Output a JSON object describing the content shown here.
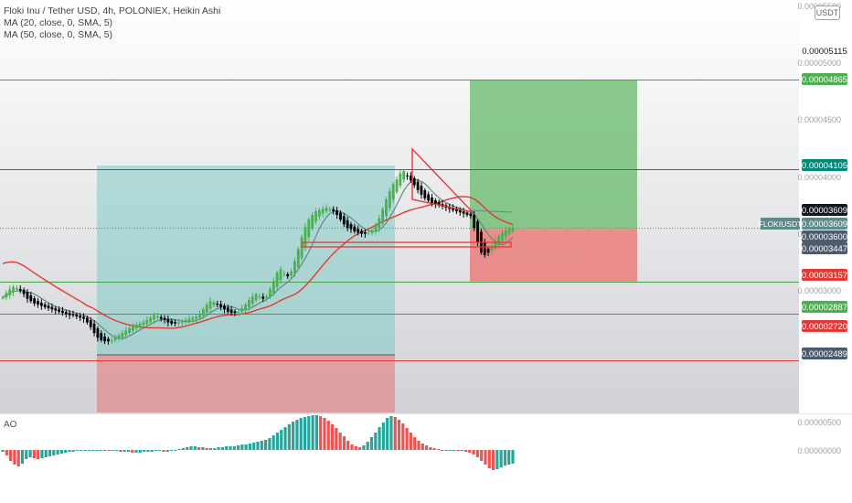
{
  "legend": {
    "title": "Floki Inu / Tether USD, 4h, POLONIEX, Heikin Ashi",
    "ma20": "MA (20, close, 0, SMA, 5)",
    "ma50": "MA (50, close, 0, SMA, 5)"
  },
  "currency": "USDT",
  "symbol_badge": "FLOKIUSDT",
  "colors": {
    "bull": "#26a69a",
    "bull_ha": "#4caf50",
    "bear": "#000000",
    "ma20": "#5f8a8b",
    "ma50": "#e53935",
    "long_target": "#66bb6a",
    "long_stop": "#ef5350",
    "ao_up": "#26a69a",
    "ao_down": "#ef5350",
    "triangle": "#e53935",
    "hline_green": "#43a047",
    "hline_teal": "#00897b",
    "hline_red": "#e53935"
  },
  "price_axis_ticks": [
    "0.00005500",
    "0.00005000",
    "0.00004500",
    "0.00004000",
    "0.00003500",
    "0.00003000"
  ],
  "price_labels": [
    {
      "value": "0.00005115",
      "style": "white"
    },
    {
      "value": "0.00004865",
      "style": "green"
    },
    {
      "value": "0.00004105",
      "style": "teal"
    },
    {
      "value": "0.00003609",
      "style": "black"
    },
    {
      "value": "0.00003609",
      "style": "gray"
    },
    {
      "value": "0.00003600",
      "style": "slate"
    },
    {
      "value": "0.00003447",
      "style": "slate"
    },
    {
      "value": "0.00003157",
      "style": "red"
    },
    {
      "value": "0.00002887",
      "style": "green"
    },
    {
      "value": "0.00002720",
      "style": "red"
    },
    {
      "value": "0.00002489",
      "style": "slate"
    }
  ],
  "ao_axis_ticks": [
    "0.00000500",
    "0.00000000"
  ],
  "ao_title": "AO",
  "chart_data": {
    "type": "candlestick",
    "title": "Floki Inu / Tether USD, 4h, POLONIEX, Heikin Ashi",
    "y_axis_ticks": [
      5.5e-05,
      5e-05,
      4.5e-05,
      4e-05,
      3.5e-05,
      3e-05
    ],
    "close_series_approx": [
      3.02e-05,
      3.06e-05,
      3.09e-05,
      3.11e-05,
      3.1e-05,
      3.08e-05,
      3.05e-05,
      3.01e-05,
      2.99e-05,
      2.97e-05,
      2.96e-05,
      2.95e-05,
      2.94e-05,
      2.93e-05,
      2.92e-05,
      2.91e-05,
      2.9e-05,
      2.89e-05,
      2.88e-05,
      2.87e-05,
      2.87e-05,
      2.86e-05,
      2.85e-05,
      2.84e-05,
      2.81e-05,
      2.77e-05,
      2.72e-05,
      2.68e-05,
      2.66e-05,
      2.65e-05,
      2.65e-05,
      2.66e-05,
      2.68e-05,
      2.7e-05,
      2.72e-05,
      2.74e-05,
      2.76e-05,
      2.78e-05,
      2.79e-05,
      2.8e-05,
      2.81e-05,
      2.83e-05,
      2.85e-05,
      2.87e-05,
      2.86e-05,
      2.84e-05,
      2.83e-05,
      2.81e-05,
      2.8e-05,
      2.8e-05,
      2.81e-05,
      2.82e-05,
      2.83e-05,
      2.84e-05,
      2.85e-05,
      2.86e-05,
      2.88e-05,
      2.92e-05,
      2.96e-05,
      2.99e-05,
      2.98e-05,
      2.96e-05,
      2.94e-05,
      2.92e-05,
      2.9e-05,
      2.89e-05,
      2.89e-05,
      2.9e-05,
      2.93e-05,
      2.96e-05,
      3e-05,
      3.03e-05,
      3.05e-05,
      3.03e-05,
      3.01e-05,
      3.03e-05,
      3.09e-05,
      3.16e-05,
      3.23e-05,
      3.26e-05,
      3.22e-05,
      3.2e-05,
      3.24e-05,
      3.33e-05,
      3.43e-05,
      3.53e-05,
      3.62e-05,
      3.68e-05,
      3.72e-05,
      3.75e-05,
      3.76e-05,
      3.77e-05,
      3.78e-05,
      3.77e-05,
      3.75e-05,
      3.72e-05,
      3.68e-05,
      3.64e-05,
      3.61e-05,
      3.6e-05,
      3.58e-05,
      3.57e-05,
      3.56e-05,
      3.56e-05,
      3.57e-05,
      3.59e-05,
      3.63e-05,
      3.69e-05,
      3.77e-05,
      3.85e-05,
      3.92e-05,
      3.98e-05,
      4.02e-05,
      4.07e-05,
      4.09e-05,
      4.05e-05,
      4.01e-05,
      3.97e-05,
      3.93e-05,
      3.89e-05,
      3.86e-05,
      3.84e-05,
      3.82e-05,
      3.81e-05,
      3.8e-05,
      3.79e-05,
      3.78e-05,
      3.77e-05,
      3.76e-05,
      3.75e-05,
      3.74e-05,
      3.73e-05,
      3.72e-05,
      3.71e-05,
      3.61e-05,
      3.49e-05,
      3.4e-05,
      3.38e-05,
      3.4e-05,
      3.45e-05,
      3.5e-05,
      3.54e-05,
      3.57e-05,
      3.59e-05,
      3.6e-05,
      3.61e-05
    ],
    "horizontal_levels": [
      {
        "price": 4.865e-05,
        "color": "green"
      },
      {
        "price": 4.105e-05,
        "color": "teal"
      },
      {
        "price": 3.157e-05,
        "color": "green"
      },
      {
        "price": 2.887e-05,
        "color": "green"
      },
      {
        "price": 2.489e-05,
        "color": "red"
      }
    ],
    "current_price": 3.609e-05,
    "long_position": {
      "entry": 3.6e-05,
      "target": 4.865e-05,
      "stop": 3.157e-05
    },
    "first_position": {
      "entry": 2.49e-05,
      "target": 4.11e-05,
      "stop": 2.05e-05
    },
    "indicators": [
      "MA (20, close, 0, SMA, 5)",
      "MA (50, close, 0, SMA, 5)",
      "AO"
    ],
    "ao_values_approx": [
      -2,
      -6,
      -12,
      -16,
      -18,
      -15,
      -10,
      -8,
      -9,
      -10,
      -9,
      -8,
      -7,
      -6,
      -5,
      -4,
      -3,
      -2,
      -2,
      -1,
      -1,
      -1,
      -1,
      0,
      0,
      0,
      0,
      -1,
      -1,
      -1,
      -2,
      -2,
      -2,
      -3,
      -3,
      -3,
      -2,
      -2,
      -2,
      -1,
      -1,
      -2,
      -2,
      -1,
      0,
      1,
      2,
      3,
      4,
      4,
      3,
      3,
      2,
      2,
      2,
      3,
      3,
      4,
      4,
      4,
      5,
      6,
      6,
      7,
      8,
      9,
      10,
      11,
      13,
      16,
      19,
      22,
      25,
      28,
      31,
      33,
      35,
      36,
      37,
      38,
      38,
      37,
      35,
      32,
      28,
      24,
      19,
      15,
      10,
      6,
      4,
      3,
      5,
      9,
      14,
      19,
      25,
      30,
      35,
      37,
      36,
      33,
      29,
      24,
      19,
      14,
      10,
      7,
      5,
      3,
      2,
      1,
      0,
      0,
      0,
      0,
      -1,
      -1,
      -2,
      -3,
      -5,
      -8,
      -12,
      -16,
      -20,
      -22,
      -21,
      -19,
      -17,
      -16,
      -15
    ]
  }
}
